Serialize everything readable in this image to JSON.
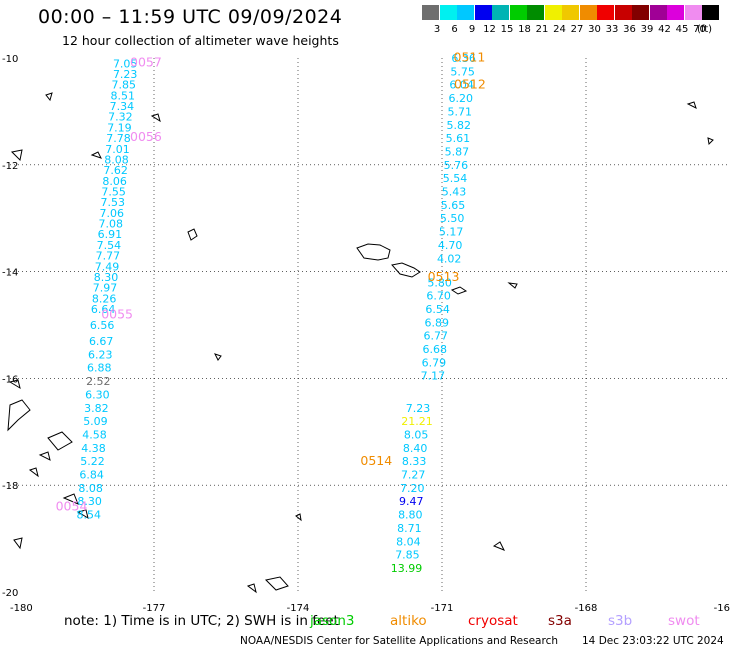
{
  "header": {
    "title": "00:00 – 11:59 UTC 09/09/2024",
    "subtitle": "12 hour collection of altimeter wave heights"
  },
  "legend": {
    "unit": "(ft)",
    "bins": [
      {
        "label": "3",
        "color": "#6e6e6e"
      },
      {
        "label": "6",
        "color": "#00f0f0"
      },
      {
        "label": "9",
        "color": "#00c8ff"
      },
      {
        "label": "12",
        "color": "#0000f0"
      },
      {
        "label": "15",
        "color": "#00b4b4"
      },
      {
        "label": "18",
        "color": "#00cc00"
      },
      {
        "label": "21",
        "color": "#008c00"
      },
      {
        "label": "24",
        "color": "#f0f000"
      },
      {
        "label": "27",
        "color": "#f0c800"
      },
      {
        "label": "30",
        "color": "#f08c00"
      },
      {
        "label": "33",
        "color": "#f00000"
      },
      {
        "label": "36",
        "color": "#c80000"
      },
      {
        "label": "39",
        "color": "#820000"
      },
      {
        "label": "42",
        "color": "#a00096"
      },
      {
        "label": "45",
        "color": "#dc00dc"
      },
      {
        "label": "70",
        "color": "#f08cf0"
      },
      {
        "label": "",
        "color": "#000000"
      }
    ]
  },
  "map": {
    "lon_min": -180,
    "lon_max": -165,
    "lat_min": -20,
    "lat_max": -10,
    "x_ticks": [
      "-180",
      "-177",
      "-174",
      "-171",
      "-168",
      "-16"
    ],
    "y_ticks": [
      "-10",
      "-12",
      "-14",
      "-16",
      "-18",
      "-20"
    ]
  },
  "tracks": [
    {
      "pass": "0057",
      "lon": -177.5,
      "lat": -10.08,
      "color": "#f08cf0"
    },
    {
      "pass": "0056",
      "lon": -177.5,
      "lat": -11.48,
      "color": "#f08cf0"
    },
    {
      "pass": "0055",
      "lon": -178.1,
      "lat": -14.8,
      "color": "#f08cf0"
    },
    {
      "pass": "0054",
      "lon": -179.05,
      "lat": -18.4,
      "color": "#f08cf0"
    },
    {
      "pass": "0511",
      "lon": -170.76,
      "lat": -9.99,
      "color": "#f08c00"
    },
    {
      "pass": "0512",
      "lon": -170.75,
      "lat": -10.5,
      "color": "#f08c00"
    },
    {
      "pass": "0513",
      "lon": -171.3,
      "lat": -14.1,
      "color": "#f08c00"
    },
    {
      "pass": "0514",
      "lon": -172.7,
      "lat": -17.55,
      "color": "#f08c00"
    }
  ],
  "readings": [
    {
      "v": "7.05",
      "lon": -177.6,
      "lat": -10.1,
      "color": "#00c8ff"
    },
    {
      "v": "7.23",
      "lon": -177.6,
      "lat": -10.3,
      "color": "#00c8ff"
    },
    {
      "v": "7.85",
      "lon": -177.63,
      "lat": -10.5,
      "color": "#00c8ff"
    },
    {
      "v": "8.51",
      "lon": -177.65,
      "lat": -10.7,
      "color": "#00c8ff"
    },
    {
      "v": "7.34",
      "lon": -177.67,
      "lat": -10.9,
      "color": "#00c8ff"
    },
    {
      "v": "7.32",
      "lon": -177.7,
      "lat": -11.1,
      "color": "#00c8ff"
    },
    {
      "v": "7.19",
      "lon": -177.72,
      "lat": -11.3,
      "color": "#00c8ff"
    },
    {
      "v": "7.78",
      "lon": -177.74,
      "lat": -11.5,
      "color": "#00c8ff"
    },
    {
      "v": "7.01",
      "lon": -177.76,
      "lat": -11.7,
      "color": "#00c8ff"
    },
    {
      "v": "8.08",
      "lon": -177.78,
      "lat": -11.9,
      "color": "#00c8ff"
    },
    {
      "v": "7.62",
      "lon": -177.8,
      "lat": -12.1,
      "color": "#00c8ff"
    },
    {
      "v": "8.06",
      "lon": -177.82,
      "lat": -12.3,
      "color": "#00c8ff"
    },
    {
      "v": "7.55",
      "lon": -177.84,
      "lat": -12.5,
      "color": "#00c8ff"
    },
    {
      "v": "7.53",
      "lon": -177.86,
      "lat": -12.7,
      "color": "#00c8ff"
    },
    {
      "v": "7.06",
      "lon": -177.88,
      "lat": -12.9,
      "color": "#00c8ff"
    },
    {
      "v": "7.08",
      "lon": -177.9,
      "lat": -13.1,
      "color": "#00c8ff"
    },
    {
      "v": "6.91",
      "lon": -177.92,
      "lat": -13.3,
      "color": "#00c8ff"
    },
    {
      "v": "7.54",
      "lon": -177.94,
      "lat": -13.5,
      "color": "#00c8ff"
    },
    {
      "v": "7.77",
      "lon": -177.96,
      "lat": -13.7,
      "color": "#00c8ff"
    },
    {
      "v": "7.49",
      "lon": -177.98,
      "lat": -13.9,
      "color": "#00c8ff"
    },
    {
      "v": "8.30",
      "lon": -178.0,
      "lat": -14.1,
      "color": "#00c8ff"
    },
    {
      "v": "7.97",
      "lon": -178.02,
      "lat": -14.3,
      "color": "#00c8ff"
    },
    {
      "v": "8.26",
      "lon": -178.04,
      "lat": -14.5,
      "color": "#00c8ff"
    },
    {
      "v": "6.64",
      "lon": -178.06,
      "lat": -14.7,
      "color": "#00c8ff"
    },
    {
      "v": "6.56",
      "lon": -178.08,
      "lat": -15.0,
      "color": "#00c8ff"
    },
    {
      "v": "6.67",
      "lon": -178.1,
      "lat": -15.3,
      "color": "#00c8ff"
    },
    {
      "v": "6.23",
      "lon": -178.12,
      "lat": -15.55,
      "color": "#00c8ff"
    },
    {
      "v": "6.88",
      "lon": -178.14,
      "lat": -15.8,
      "color": "#00c8ff"
    },
    {
      "v": "2.52",
      "lon": -178.16,
      "lat": -16.05,
      "color": "#6e6e6e"
    },
    {
      "v": "6.30",
      "lon": -178.18,
      "lat": -16.3,
      "color": "#00c8ff"
    },
    {
      "v": "3.82",
      "lon": -178.2,
      "lat": -16.55,
      "color": "#00c8ff"
    },
    {
      "v": "5.09",
      "lon": -178.22,
      "lat": -16.8,
      "color": "#00c8ff"
    },
    {
      "v": "4.58",
      "lon": -178.24,
      "lat": -17.05,
      "color": "#00c8ff"
    },
    {
      "v": "4.38",
      "lon": -178.26,
      "lat": -17.3,
      "color": "#00c8ff"
    },
    {
      "v": "5.22",
      "lon": -178.28,
      "lat": -17.55,
      "color": "#00c8ff"
    },
    {
      "v": "6.84",
      "lon": -178.3,
      "lat": -17.8,
      "color": "#00c8ff"
    },
    {
      "v": "8.08",
      "lon": -178.32,
      "lat": -18.05,
      "color": "#00c8ff"
    },
    {
      "v": "8.30",
      "lon": -178.34,
      "lat": -18.3,
      "color": "#00c8ff"
    },
    {
      "v": "8.54",
      "lon": -178.36,
      "lat": -18.55,
      "color": "#00c8ff"
    },
    {
      "v": "6.36",
      "lon": -170.55,
      "lat": -10.0,
      "color": "#00c8ff"
    },
    {
      "v": "5.75",
      "lon": -170.57,
      "lat": -10.25,
      "color": "#00c8ff"
    },
    {
      "v": "6.04",
      "lon": -170.59,
      "lat": -10.5,
      "color": "#00c8ff"
    },
    {
      "v": "6.20",
      "lon": -170.61,
      "lat": -10.75,
      "color": "#00c8ff"
    },
    {
      "v": "5.71",
      "lon": -170.63,
      "lat": -11.0,
      "color": "#00c8ff"
    },
    {
      "v": "5.82",
      "lon": -170.65,
      "lat": -11.25,
      "color": "#00c8ff"
    },
    {
      "v": "5.61",
      "lon": -170.67,
      "lat": -11.5,
      "color": "#00c8ff"
    },
    {
      "v": "5.87",
      "lon": -170.69,
      "lat": -11.75,
      "color": "#00c8ff"
    },
    {
      "v": "5.76",
      "lon": -170.71,
      "lat": -12.0,
      "color": "#00c8ff"
    },
    {
      "v": "5.54",
      "lon": -170.73,
      "lat": -12.25,
      "color": "#00c8ff"
    },
    {
      "v": "5.43",
      "lon": -170.75,
      "lat": -12.5,
      "color": "#00c8ff"
    },
    {
      "v": "5.65",
      "lon": -170.77,
      "lat": -12.75,
      "color": "#00c8ff"
    },
    {
      "v": "5.50",
      "lon": -170.79,
      "lat": -13.0,
      "color": "#00c8ff"
    },
    {
      "v": "5.17",
      "lon": -170.81,
      "lat": -13.25,
      "color": "#00c8ff"
    },
    {
      "v": "4.70",
      "lon": -170.83,
      "lat": -13.5,
      "color": "#00c8ff"
    },
    {
      "v": "4.02",
      "lon": -170.85,
      "lat": -13.75,
      "color": "#00c8ff"
    },
    {
      "v": "5.80",
      "lon": -171.05,
      "lat": -14.2,
      "color": "#00c8ff"
    },
    {
      "v": "6.70",
      "lon": -171.07,
      "lat": -14.45,
      "color": "#00c8ff"
    },
    {
      "v": "6.54",
      "lon": -171.09,
      "lat": -14.7,
      "color": "#00c8ff"
    },
    {
      "v": "6.89",
      "lon": -171.11,
      "lat": -14.95,
      "color": "#00c8ff"
    },
    {
      "v": "6.77",
      "lon": -171.13,
      "lat": -15.2,
      "color": "#00c8ff"
    },
    {
      "v": "6.68",
      "lon": -171.15,
      "lat": -15.45,
      "color": "#00c8ff"
    },
    {
      "v": "6.79",
      "lon": -171.17,
      "lat": -15.7,
      "color": "#00c8ff"
    },
    {
      "v": "7.17",
      "lon": -171.19,
      "lat": -15.95,
      "color": "#00c8ff"
    },
    {
      "v": "7.23",
      "lon": -171.5,
      "lat": -16.55,
      "color": "#00c8ff"
    },
    {
      "v": "21.21",
      "lon": -171.52,
      "lat": -16.8,
      "color": "#f0f000"
    },
    {
      "v": "8.05",
      "lon": -171.54,
      "lat": -17.05,
      "color": "#00c8ff"
    },
    {
      "v": "8.40",
      "lon": -171.56,
      "lat": -17.3,
      "color": "#00c8ff"
    },
    {
      "v": "8.33",
      "lon": -171.58,
      "lat": -17.55,
      "color": "#00c8ff"
    },
    {
      "v": "7.27",
      "lon": -171.6,
      "lat": -17.8,
      "color": "#00c8ff"
    },
    {
      "v": "7.20",
      "lon": -171.62,
      "lat": -18.05,
      "color": "#00c8ff"
    },
    {
      "v": "9.47",
      "lon": -171.64,
      "lat": -18.3,
      "color": "#0000f0"
    },
    {
      "v": "8.80",
      "lon": -171.66,
      "lat": -18.55,
      "color": "#00c8ff"
    },
    {
      "v": "8.71",
      "lon": -171.68,
      "lat": -18.8,
      "color": "#00c8ff"
    },
    {
      "v": "8.04",
      "lon": -171.7,
      "lat": -19.05,
      "color": "#00c8ff"
    },
    {
      "v": "7.85",
      "lon": -171.72,
      "lat": -19.3,
      "color": "#00c8ff"
    },
    {
      "v": "13.99",
      "lon": -171.74,
      "lat": -19.55,
      "color": "#00cc00"
    }
  ],
  "note": {
    "text": "note: 1) Time is in UTC; 2) SWH is in feet",
    "satellites": [
      {
        "name": "jason3",
        "color": "#00cc00"
      },
      {
        "name": "altiko",
        "color": "#f08c00"
      },
      {
        "name": "cryosat",
        "color": "#f00000"
      },
      {
        "name": "s3a",
        "color": "#820000"
      },
      {
        "name": "s3b",
        "color": "#b4a0ff"
      },
      {
        "name": "swot",
        "color": "#f08cf0"
      }
    ]
  },
  "footer": {
    "credit": "NOAA/NESDIS Center for Satellite Applications and Research",
    "generated": "14 Dec 23:03:22 UTC 2024"
  }
}
